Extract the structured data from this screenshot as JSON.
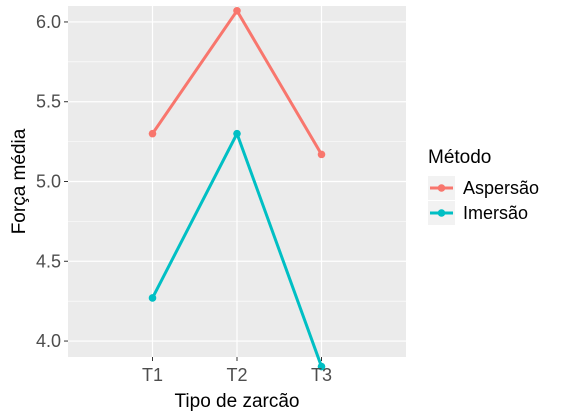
{
  "chart_data": {
    "type": "line",
    "title": "",
    "xlabel": "Tipo de zarcão",
    "ylabel": "Força média",
    "categories": [
      "T1",
      "T2",
      "T3"
    ],
    "y_ticks": [
      "4.0",
      "4.5",
      "5.0",
      "5.5",
      "6.0"
    ],
    "y_tick_values": [
      4.0,
      4.5,
      5.0,
      5.5,
      6.0
    ],
    "ylim": [
      3.9,
      6.1
    ],
    "grid": true,
    "legend": {
      "title": "Método",
      "position": "right"
    },
    "series": [
      {
        "name": "Aspersão",
        "values": [
          5.3,
          6.07,
          5.17
        ],
        "color": "#F8766D"
      },
      {
        "name": "Imersão",
        "values": [
          4.27,
          5.3,
          3.84
        ],
        "color": "#00BFC4"
      }
    ],
    "panel_background": "#EBEBEB",
    "grid_color": "#FFFFFF"
  }
}
